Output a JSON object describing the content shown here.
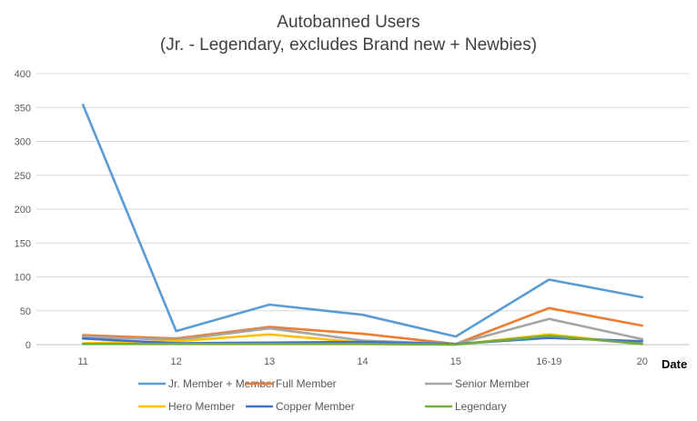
{
  "chart_data": {
    "type": "line",
    "title": "Autobanned Users",
    "subtitle": "(Jr. - Legendary, excludes Brand new + Newbies)",
    "xlabel": "Date",
    "ylabel": "",
    "categories": [
      "11",
      "12",
      "13",
      "14",
      "15",
      "16-19",
      "20"
    ],
    "ylim": [
      0,
      400
    ],
    "yticks": [
      0,
      50,
      100,
      150,
      200,
      250,
      300,
      350,
      400
    ],
    "grid": true,
    "legend_position": "bottom",
    "series": [
      {
        "name": "Jr. Member + Member",
        "color": "#5b9bd5",
        "values": [
          354,
          20,
          59,
          44,
          12,
          96,
          70
        ]
      },
      {
        "name": "Full Member",
        "color": "#ed7d31",
        "values": [
          14,
          9,
          26,
          16,
          1,
          54,
          28
        ]
      },
      {
        "name": "Senior Member",
        "color": "#a5a5a5",
        "values": [
          12,
          7,
          24,
          6,
          1,
          38,
          8
        ]
      },
      {
        "name": "Hero Member",
        "color": "#ffc000",
        "values": [
          2,
          5,
          15,
          3,
          0,
          15,
          1
        ]
      },
      {
        "name": "Copper Member",
        "color": "#4472c4",
        "values": [
          9,
          2,
          3,
          4,
          1,
          10,
          5
        ]
      },
      {
        "name": "Legendary",
        "color": "#70ad47",
        "values": [
          1,
          1,
          1,
          1,
          0,
          13,
          1
        ]
      }
    ]
  }
}
